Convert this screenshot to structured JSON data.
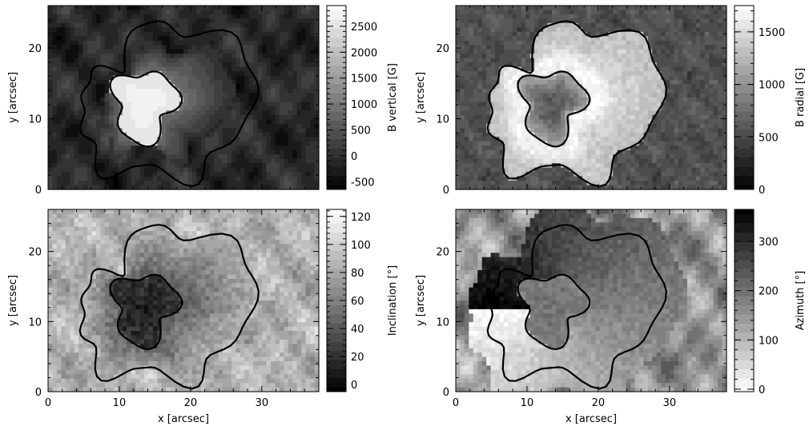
{
  "chart_data": [
    {
      "type": "heatmap",
      "panel": "top-left",
      "ylabel": "y [arcsec]",
      "xlabel": "",
      "xlim": [
        0,
        38
      ],
      "ylim": [
        0,
        26
      ],
      "xticks": [
        "0",
        "10",
        "20",
        "30"
      ],
      "yticks": [
        "0",
        "10",
        "20"
      ],
      "show_x_tick_labels": false,
      "colorbar": {
        "label": "B vertical [G]",
        "range": [
          -650,
          2900
        ],
        "ticks": [
          "-500",
          "0",
          "500",
          "1000",
          "1500",
          "2000",
          "2500"
        ],
        "tick_values": [
          -500,
          0,
          500,
          1000,
          1500,
          2000,
          2500
        ],
        "colormap": "gray",
        "reversed": false
      },
      "field": {
        "umbra": 2800,
        "penumbra": 950,
        "penumbra_radius": 8,
        "plateau": false,
        "background": -80,
        "noise": 60,
        "dark_core": false
      }
    },
    {
      "type": "heatmap",
      "panel": "top-right",
      "ylabel": "y [arcsec]",
      "xlabel": "",
      "xlim": [
        0,
        38
      ],
      "ylim": [
        0,
        26
      ],
      "xticks": [
        "0",
        "10",
        "20",
        "30"
      ],
      "yticks": [
        "0",
        "10",
        "20"
      ],
      "show_x_tick_labels": false,
      "colorbar": {
        "label": "B radial [G]",
        "range": [
          0,
          1750
        ],
        "ticks": [
          "0",
          "500",
          "1000",
          "1500"
        ],
        "tick_values": [
          0,
          500,
          1000,
          1500
        ],
        "colormap": "gray",
        "reversed": false
      },
      "field": {
        "umbra": 600,
        "penumbra": 1550,
        "penumbra_radius": 11,
        "plateau": true,
        "background": 550,
        "noise": 180,
        "dark_core": true
      }
    },
    {
      "type": "heatmap",
      "panel": "bottom-left",
      "ylabel": "y [arcsec]",
      "xlabel": "x [arcsec]",
      "xlim": [
        0,
        38
      ],
      "ylim": [
        0,
        26
      ],
      "xticks": [
        "0",
        "10",
        "20",
        "30"
      ],
      "yticks": [
        "0",
        "10",
        "20"
      ],
      "show_x_tick_labels": true,
      "colorbar": {
        "label": "Inclination [°]",
        "range": [
          -5,
          125
        ],
        "ticks": [
          "0",
          "20",
          "40",
          "60",
          "80",
          "100",
          "120"
        ],
        "tick_values": [
          0,
          20,
          40,
          60,
          80,
          100,
          120
        ],
        "colormap": "gray",
        "reversed": false
      },
      "field": {
        "umbra": 12,
        "penumbra": 45,
        "penumbra_radius": 11,
        "plateau": false,
        "background": 85,
        "noise": 20,
        "dark_core": false
      }
    },
    {
      "type": "heatmap",
      "panel": "bottom-right",
      "ylabel": "y [arcsec]",
      "xlabel": "x [arcsec]",
      "xlim": [
        0,
        38
      ],
      "ylim": [
        0,
        26
      ],
      "xticks": [
        "0",
        "10",
        "20",
        "30"
      ],
      "yticks": [
        "0",
        "10",
        "20"
      ],
      "show_x_tick_labels": true,
      "colorbar": {
        "label": "Azimuth [°]",
        "range": [
          -5,
          365
        ],
        "ticks": [
          "0",
          "100",
          "200",
          "300"
        ],
        "tick_values": [
          0,
          100,
          200,
          300
        ],
        "colormap": "gray",
        "reversed": true
      },
      "field": {
        "azimuth": true,
        "background": 150,
        "noise": 40
      }
    }
  ]
}
